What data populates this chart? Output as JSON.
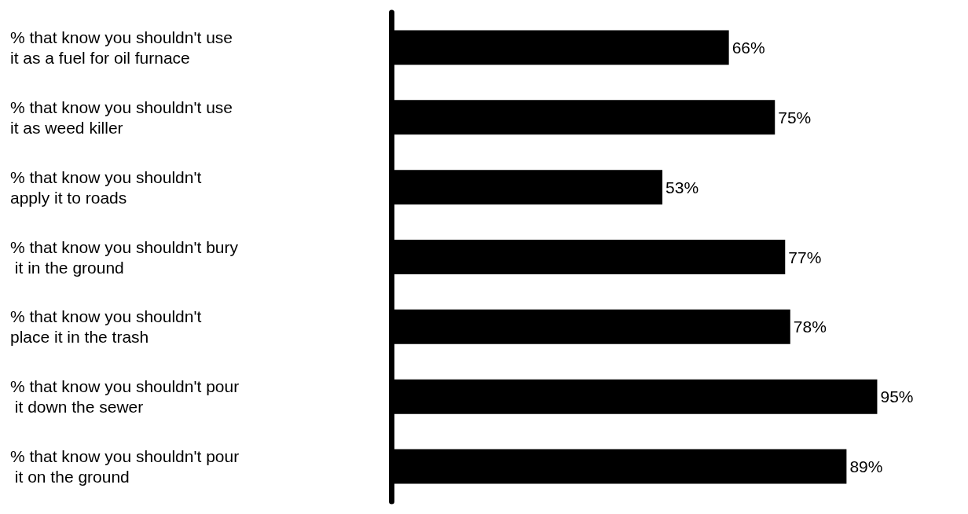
{
  "chart_data": {
    "type": "bar",
    "orientation": "horizontal",
    "categories": [
      "% that know you shouldn't use it as a fuel for oil furnace",
      "% that know you shouldn't use it as weed killer",
      "% that know you shouldn't apply it to roads",
      "% that know you shouldn't bury it in the ground",
      "% that know you shouldn't place it in the trash",
      "% that know you shouldn't pour it down the sewer",
      "% that know you shouldn't pour it on the ground"
    ],
    "values": [
      66,
      75,
      53,
      77,
      78,
      95,
      89
    ],
    "value_labels": [
      "66%",
      "75%",
      "53%",
      "77%",
      "78%",
      "95%",
      "89%"
    ],
    "color": "#000000"
  }
}
